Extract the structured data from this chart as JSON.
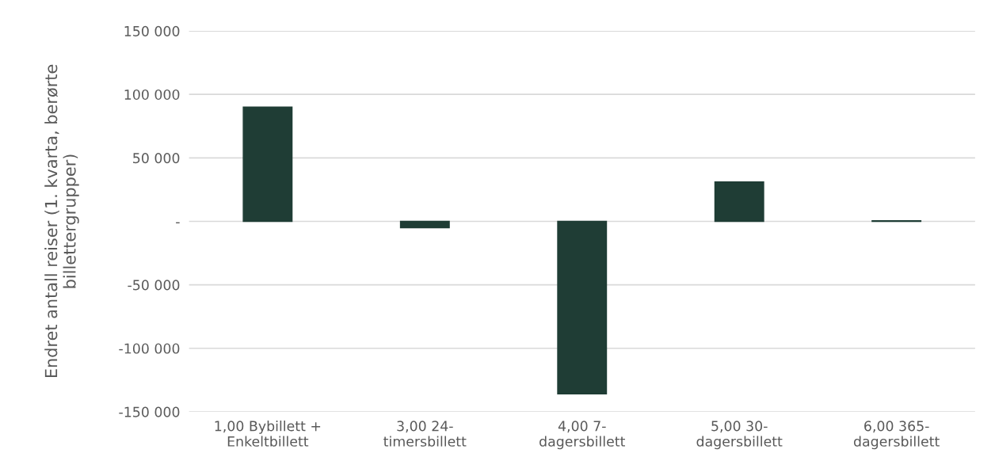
{
  "chart_data": {
    "type": "bar",
    "ylabel": "Endret antall reiser (1. kvarta, berørte billettergrupper)",
    "categories": [
      "1,00 Bybillett +\nEnkeltbillett",
      "3,00 24-\ntimersbillett",
      "4,00 7-\ndagersbillett",
      "5,00 30-\ndagersbillett",
      "6,00 365-\ndagersbillett"
    ],
    "values": [
      90000,
      -5000,
      -136000,
      31000,
      500
    ],
    "color": "#1f3d35",
    "ylim": [
      -150000,
      150000
    ],
    "yticks": [
      {
        "value": -150000,
        "label": "-150 000"
      },
      {
        "value": -100000,
        "label": "-100 000"
      },
      {
        "value": -50000,
        "label": "-50 000"
      },
      {
        "value": 0,
        "label": "-"
      },
      {
        "value": 50000,
        "label": "50 000"
      },
      {
        "value": 100000,
        "label": "100 000"
      },
      {
        "value": 150000,
        "label": "150 000"
      }
    ],
    "grid": "y",
    "legend": false
  }
}
